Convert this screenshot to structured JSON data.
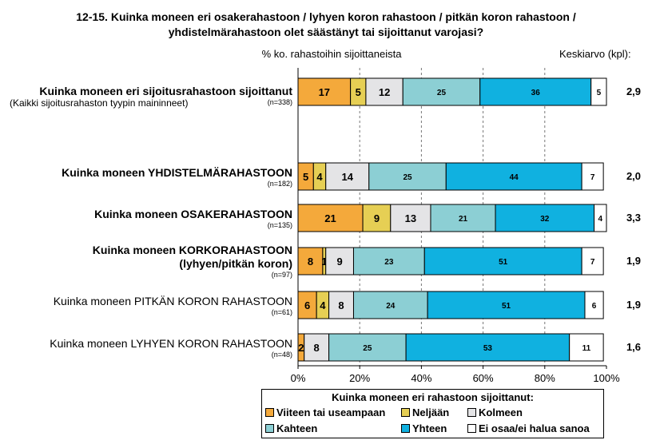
{
  "title_lines": [
    "12-15. Kuinka moneen eri osakerahastoon / lyhyen koron rahastoon / pitkän koron rahastoon /",
    "yhdistelmärahastoon olet säästänyt tai sijoittanut varojasi?"
  ],
  "axis_caption": "% ko. rahastoihin sijoittaneista",
  "mean_caption": "Keskiarvo (kpl):",
  "chart_data": {
    "type": "bar",
    "orientation": "horizontal",
    "stacked": true,
    "xlim": [
      0,
      100
    ],
    "x_ticks": [
      "0%",
      "20%",
      "40%",
      "60%",
      "80%",
      "100%"
    ],
    "grid": "dashed vertical",
    "legend_position": "bottom",
    "legend_title": "Kuinka moneen eri rahastoon sijoittanut:",
    "series": [
      {
        "name": "Viiteen tai useampaan",
        "color": "#F4A93B"
      },
      {
        "name": "Neljään",
        "color": "#E6CF54"
      },
      {
        "name": "Kolmeen",
        "color": "#E4E4E6"
      },
      {
        "name": "Kahteen",
        "color": "#8CCFD4"
      },
      {
        "name": "Yhteen",
        "color": "#10B1E0"
      },
      {
        "name": "Ei osaa/ei halua sanoa",
        "color": "#FFFFFF"
      }
    ],
    "rows": [
      {
        "label": "Kuinka moneen eri sijoitusrahastoon sijoittanut",
        "bold": true,
        "subnote": "(Kaikki sijoitusrahaston tyypin maininneet)",
        "n": "(n=338)",
        "mean": "2,9",
        "values": [
          17,
          5,
          12,
          25,
          36,
          5
        ]
      },
      {
        "label": "Kuinka moneen YHDISTELMÄRAHASTOON",
        "bold": true,
        "n": "(n=182)",
        "mean": "2,0",
        "values": [
          5,
          4,
          14,
          25,
          44,
          7
        ]
      },
      {
        "label": "Kuinka moneen OSAKERAHASTOON",
        "bold": true,
        "n": "(n=135)",
        "mean": "3,3",
        "values": [
          21,
          9,
          13,
          21,
          32,
          4
        ]
      },
      {
        "label": "Kuinka moneen KORKORAHASTOON",
        "label2": "(lyhyen/pitkän koron)",
        "bold": true,
        "n": "(n=97)",
        "mean": "1,9",
        "values": [
          8,
          1,
          9,
          23,
          51,
          7
        ]
      },
      {
        "label": "Kuinka moneen PITKÄN KORON RAHASTOON",
        "bold": false,
        "n": "(n=61)",
        "mean": "1,9",
        "values": [
          6,
          4,
          8,
          24,
          51,
          6
        ]
      },
      {
        "label": "Kuinka moneen LYHYEN KORON RAHASTOON",
        "bold": false,
        "n": "(n=48)",
        "mean": "1,6",
        "values": [
          2,
          0,
          8,
          25,
          53,
          11
        ]
      }
    ]
  }
}
